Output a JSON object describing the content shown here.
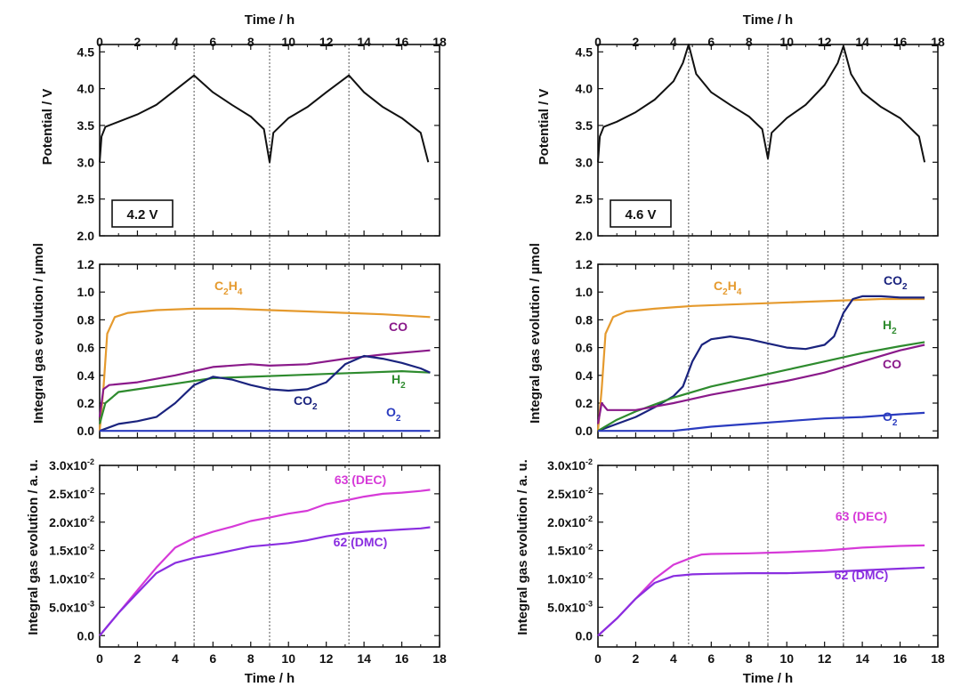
{
  "chart_data": [
    {
      "panel": "left",
      "type": "line",
      "xlabel_top": "Time / h",
      "xlabel_bottom": "Time / h",
      "xlim": [
        0,
        18
      ],
      "xticks": [
        "0",
        "2",
        "4",
        "6",
        "8",
        "10",
        "12",
        "14",
        "16",
        "18"
      ],
      "vlines": [
        5.0,
        9.0,
        13.2
      ],
      "potential": {
        "ylabel": "Potential / V",
        "ylim": [
          2.0,
          4.6
        ],
        "yticks": [
          "2.0",
          "2.5",
          "3.0",
          "3.5",
          "4.0",
          "4.5"
        ],
        "box_label": "4.2 V",
        "series": [
          {
            "name": "Potential",
            "color": "#111111",
            "x": [
              0,
              0.1,
              0.3,
              1,
              2,
              3,
              4,
              5.0,
              6,
              7,
              8,
              8.7,
              9.0,
              9.2,
              10,
              11,
              12,
              13.2,
              14,
              15,
              16,
              17,
              17.4
            ],
            "y": [
              3.0,
              3.35,
              3.48,
              3.55,
              3.65,
              3.78,
              3.98,
              4.18,
              3.95,
              3.78,
              3.62,
              3.45,
              3.0,
              3.4,
              3.6,
              3.75,
              3.95,
              4.18,
              3.95,
              3.75,
              3.6,
              3.4,
              3.0
            ]
          }
        ]
      },
      "gas": {
        "ylabel": "Integral gas evolution / µmol",
        "ylim": [
          -0.05,
          1.2
        ],
        "yticks": [
          "0.0",
          "0.2",
          "0.4",
          "0.6",
          "0.8",
          "1.0",
          "1.2"
        ],
        "series": [
          {
            "name": "C2H4",
            "label_main": "C",
            "label_sub1": "2",
            "label_mid": "H",
            "label_sub2": "4",
            "color": "#e59a2e",
            "x": [
              0,
              0.2,
              0.4,
              0.8,
              1.5,
              3,
              5,
              7,
              9,
              11,
              13,
              15,
              17.5
            ],
            "y": [
              0,
              0.3,
              0.7,
              0.82,
              0.85,
              0.87,
              0.88,
              0.88,
              0.87,
              0.86,
              0.85,
              0.84,
              0.82
            ]
          },
          {
            "name": "CO",
            "label_main": "CO",
            "color": "#8a1a8a",
            "x": [
              0,
              0.2,
              0.5,
              2,
              4,
              6,
              8,
              9,
              11,
              13,
              15,
              17.5
            ],
            "y": [
              0.1,
              0.3,
              0.33,
              0.35,
              0.4,
              0.46,
              0.48,
              0.47,
              0.48,
              0.52,
              0.55,
              0.58
            ]
          },
          {
            "name": "H2",
            "label_main": "H",
            "label_sub1": "2",
            "color": "#2e8b2e",
            "x": [
              0,
              0.3,
              1,
              2,
              4,
              6,
              8,
              10,
              12,
              14,
              16,
              17.5
            ],
            "y": [
              0.05,
              0.2,
              0.28,
              0.3,
              0.34,
              0.38,
              0.39,
              0.4,
              0.41,
              0.42,
              0.43,
              0.42
            ]
          },
          {
            "name": "CO2",
            "label_main": "CO",
            "label_sub1": "2",
            "color": "#1a237e",
            "x": [
              0,
              1,
              2,
              3,
              4,
              5,
              6,
              7,
              8,
              9,
              10,
              11,
              12,
              13,
              14,
              15,
              16,
              17,
              17.5
            ],
            "y": [
              0,
              0.05,
              0.07,
              0.1,
              0.2,
              0.33,
              0.39,
              0.37,
              0.33,
              0.3,
              0.29,
              0.3,
              0.35,
              0.48,
              0.54,
              0.52,
              0.49,
              0.45,
              0.42
            ]
          },
          {
            "name": "O2",
            "label_main": "O",
            "label_sub1": "2",
            "color": "#2a3bbf",
            "x": [
              0,
              4,
              8,
              12,
              17.5
            ],
            "y": [
              0.0,
              0.0,
              0.0,
              0.0,
              0.0
            ]
          }
        ]
      },
      "ms": {
        "ylabel": "Integral gas evolution / a. u.",
        "ylim": [
          -0.002,
          0.03
        ],
        "yticks": [
          {
            "base": "0.0",
            "exp": ""
          },
          {
            "base": "5.0x10",
            "exp": "-3"
          },
          {
            "base": "1.0x10",
            "exp": "-2"
          },
          {
            "base": "1.5x10",
            "exp": "-2"
          },
          {
            "base": "2.0x10",
            "exp": "-2"
          },
          {
            "base": "2.5x10",
            "exp": "-2"
          },
          {
            "base": "3.0x10",
            "exp": "-2"
          }
        ],
        "ytick_values": [
          0.0,
          0.005,
          0.01,
          0.015,
          0.02,
          0.025,
          0.03
        ],
        "series": [
          {
            "name": "63 (DEC)",
            "color": "#d63ad8",
            "x": [
              0,
              0.5,
              1,
              2,
              3,
              4,
              5,
              6,
              7,
              8,
              9,
              10,
              11,
              12,
              13,
              14,
              15,
              16,
              17,
              17.5
            ],
            "y": [
              0,
              0.002,
              0.004,
              0.008,
              0.012,
              0.0155,
              0.0172,
              0.0183,
              0.0192,
              0.0202,
              0.0208,
              0.0215,
              0.022,
              0.0232,
              0.0238,
              0.0245,
              0.025,
              0.0252,
              0.0255,
              0.0257
            ]
          },
          {
            "name": "62 (DMC)",
            "color": "#8a2ee0",
            "x": [
              0,
              0.5,
              1,
              2,
              3,
              4,
              5,
              6,
              7,
              8,
              9,
              10,
              11,
              12,
              13,
              14,
              15,
              16,
              17,
              17.5
            ],
            "y": [
              0,
              0.002,
              0.004,
              0.0075,
              0.011,
              0.0128,
              0.0137,
              0.0143,
              0.015,
              0.0157,
              0.016,
              0.0163,
              0.0168,
              0.0175,
              0.018,
              0.0183,
              0.0185,
              0.0187,
              0.0189,
              0.0191
            ]
          }
        ]
      }
    },
    {
      "panel": "right",
      "type": "line",
      "xlabel_top": "Time / h",
      "xlabel_bottom": "Time / h",
      "xlim": [
        0,
        18
      ],
      "xticks": [
        "0",
        "2",
        "4",
        "6",
        "8",
        "10",
        "12",
        "14",
        "16",
        "18"
      ],
      "vlines": [
        4.8,
        9.0,
        13.0
      ],
      "potential": {
        "ylabel": "Potential / V",
        "ylim": [
          2.0,
          4.6
        ],
        "yticks": [
          "2.0",
          "2.5",
          "3.0",
          "3.5",
          "4.0",
          "4.5"
        ],
        "box_label": "4.6 V",
        "series": [
          {
            "name": "Potential",
            "color": "#111111",
            "x": [
              0,
              0.1,
              0.3,
              1,
              2,
              3,
              4,
              4.5,
              4.8,
              5.2,
              6,
              7,
              8,
              8.7,
              9.0,
              9.2,
              10,
              11,
              12,
              12.7,
              13.0,
              13.4,
              14,
              15,
              16,
              17,
              17.3
            ],
            "y": [
              3.0,
              3.35,
              3.48,
              3.55,
              3.68,
              3.85,
              4.1,
              4.35,
              4.6,
              4.2,
              3.95,
              3.78,
              3.62,
              3.45,
              3.05,
              3.4,
              3.6,
              3.78,
              4.05,
              4.35,
              4.58,
              4.2,
              3.95,
              3.75,
              3.6,
              3.35,
              3.0
            ]
          }
        ]
      },
      "gas": {
        "ylabel": "Integral gas evolution / µmol",
        "ylim": [
          -0.05,
          1.2
        ],
        "yticks": [
          "0.0",
          "0.2",
          "0.4",
          "0.6",
          "0.8",
          "1.0",
          "1.2"
        ],
        "series": [
          {
            "name": "C2H4",
            "label_main": "C",
            "label_sub1": "2",
            "label_mid": "H",
            "label_sub2": "4",
            "color": "#e59a2e",
            "x": [
              0,
              0.2,
              0.4,
              0.8,
              1.5,
              3,
              5,
              7,
              9,
              11,
              13,
              15,
              17.3
            ],
            "y": [
              0,
              0.3,
              0.7,
              0.82,
              0.86,
              0.88,
              0.9,
              0.91,
              0.92,
              0.93,
              0.94,
              0.95,
              0.95
            ]
          },
          {
            "name": "CO2",
            "label_main": "CO",
            "label_sub1": "2",
            "color": "#1a237e",
            "x": [
              0,
              1,
              2,
              3,
              4,
              4.5,
              5,
              5.5,
              6,
              7,
              8,
              9,
              10,
              11,
              12,
              12.5,
              13,
              13.5,
              14,
              15,
              16,
              17.3
            ],
            "y": [
              0,
              0.05,
              0.1,
              0.17,
              0.25,
              0.32,
              0.5,
              0.62,
              0.66,
              0.68,
              0.66,
              0.63,
              0.6,
              0.59,
              0.62,
              0.68,
              0.85,
              0.95,
              0.97,
              0.97,
              0.96,
              0.96
            ]
          },
          {
            "name": "H2",
            "label_main": "H",
            "label_sub1": "2",
            "color": "#2e8b2e",
            "x": [
              0,
              1,
              2,
              4,
              6,
              8,
              10,
              12,
              14,
              16,
              17.3
            ],
            "y": [
              0.0,
              0.08,
              0.14,
              0.24,
              0.32,
              0.38,
              0.44,
              0.5,
              0.56,
              0.61,
              0.64
            ]
          },
          {
            "name": "CO",
            "label_main": "CO",
            "color": "#8a1a8a",
            "x": [
              0,
              0.2,
              0.5,
              2,
              4,
              6,
              8,
              10,
              12,
              14,
              16,
              17.3
            ],
            "y": [
              0.05,
              0.2,
              0.15,
              0.15,
              0.2,
              0.26,
              0.31,
              0.36,
              0.42,
              0.5,
              0.58,
              0.62
            ]
          },
          {
            "name": "O2",
            "label_main": "O",
            "label_sub1": "2",
            "color": "#2a3bbf",
            "x": [
              0,
              4,
              6,
              8,
              10,
              12,
              14,
              16,
              17.3
            ],
            "y": [
              0.0,
              0.0,
              0.03,
              0.05,
              0.07,
              0.09,
              0.1,
              0.12,
              0.13
            ]
          }
        ]
      },
      "ms": {
        "ylabel": "Integral gas evolution / a. u.",
        "ylim": [
          -0.002,
          0.03
        ],
        "yticks": [
          {
            "base": "0.0",
            "exp": ""
          },
          {
            "base": "5.0x10",
            "exp": "-3"
          },
          {
            "base": "1.0x10",
            "exp": "-2"
          },
          {
            "base": "1.5x10",
            "exp": "-2"
          },
          {
            "base": "2.0x10",
            "exp": "-2"
          },
          {
            "base": "2.5x10",
            "exp": "-2"
          },
          {
            "base": "3.0x10",
            "exp": "-2"
          }
        ],
        "ytick_values": [
          0.0,
          0.005,
          0.01,
          0.015,
          0.02,
          0.025,
          0.03
        ],
        "series": [
          {
            "name": "63 (DEC)",
            "color": "#d63ad8",
            "x": [
              0,
              0.5,
              1,
              2,
              3,
              4,
              5,
              5.5,
              6,
              8,
              10,
              12,
              14,
              16,
              17.3
            ],
            "y": [
              0,
              0.0015,
              0.003,
              0.0065,
              0.01,
              0.0125,
              0.0138,
              0.0143,
              0.0144,
              0.0145,
              0.0147,
              0.015,
              0.0155,
              0.0158,
              0.0159
            ]
          },
          {
            "name": "62 (DMC)",
            "color": "#8a2ee0",
            "x": [
              0,
              0.5,
              1,
              2,
              3,
              4,
              5,
              6,
              8,
              10,
              12,
              14,
              16,
              17.3
            ],
            "y": [
              0,
              0.0015,
              0.003,
              0.0065,
              0.0093,
              0.0105,
              0.0108,
              0.0109,
              0.011,
              0.011,
              0.0112,
              0.0115,
              0.0118,
              0.012
            ]
          }
        ]
      }
    }
  ]
}
